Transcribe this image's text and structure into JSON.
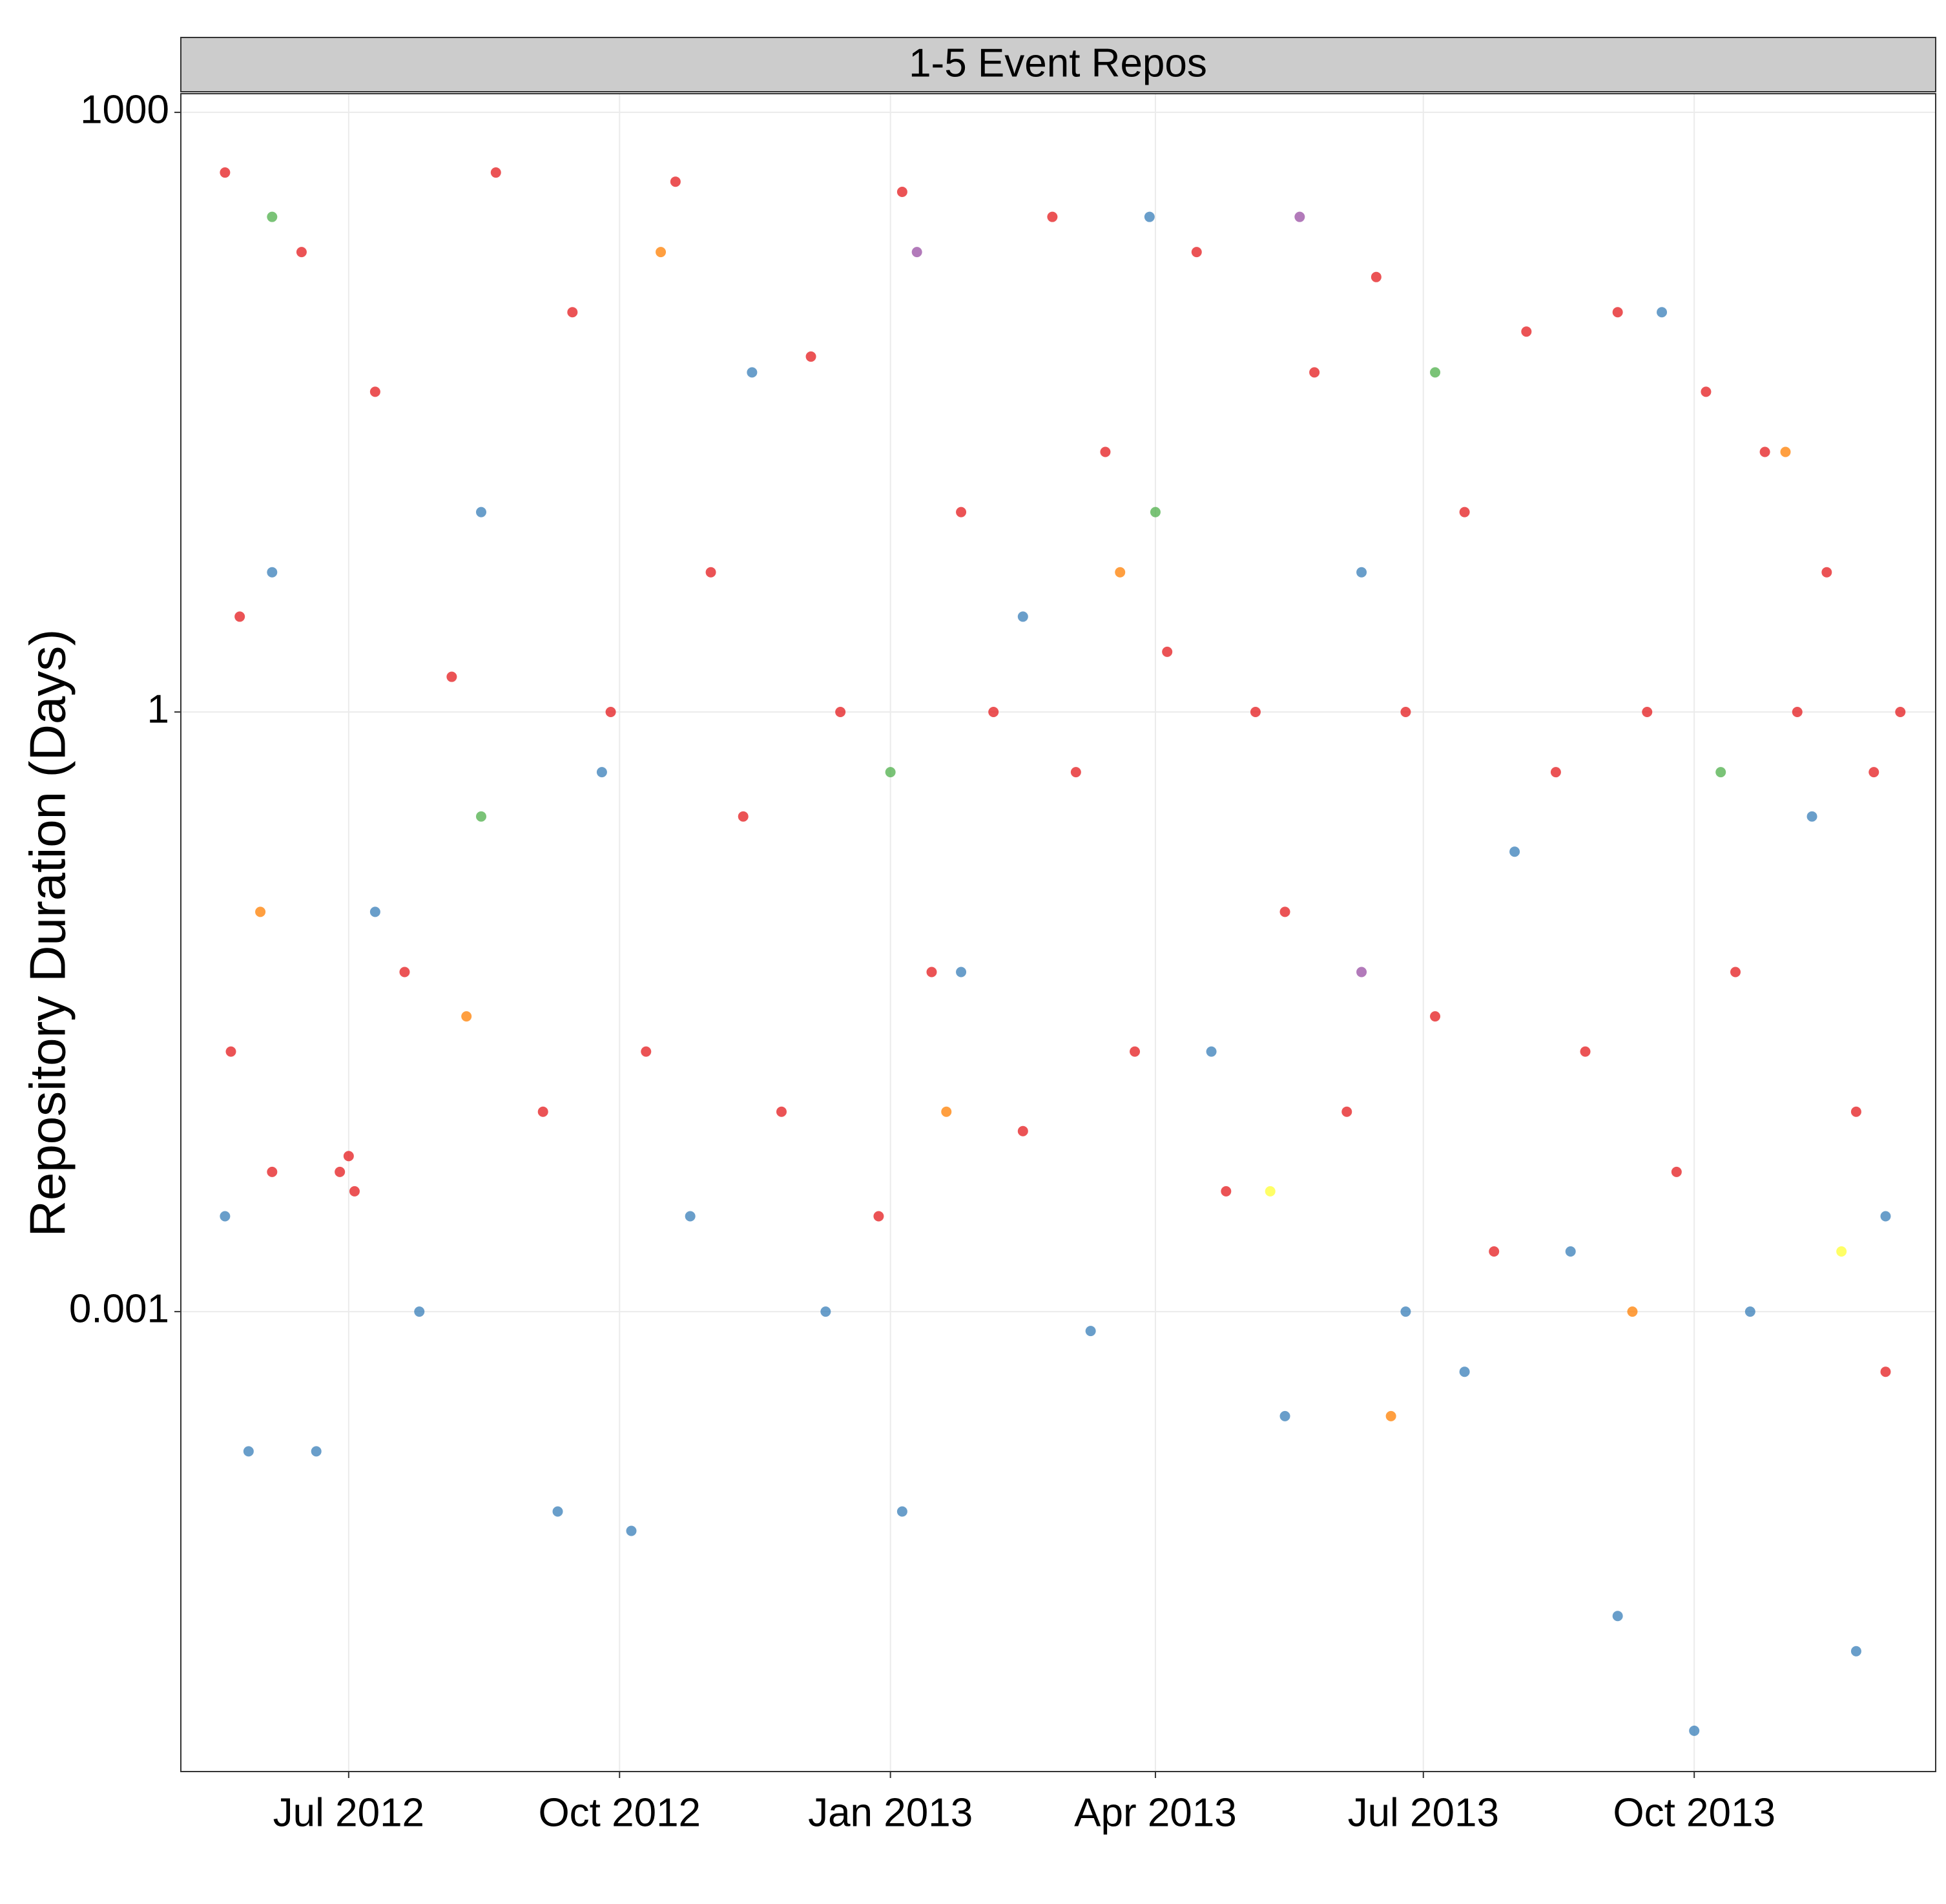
{
  "chart_data": {
    "type": "scatter",
    "strip_title": "1-5 Event Repos",
    "y_label": "Repository Duration (Days)",
    "log_y": true,
    "grid": true,
    "xlim": [
      "2012-05-05",
      "2013-12-22"
    ],
    "xticks": [
      {
        "value": "2012-07-01",
        "label": "Jul 2012"
      },
      {
        "value": "2012-10-01",
        "label": "Oct 2012"
      },
      {
        "value": "2013-01-01",
        "label": "Jan 2013"
      },
      {
        "value": "2013-04-01",
        "label": "Apr 2013"
      },
      {
        "value": "2013-07-01",
        "label": "Jul 2013"
      },
      {
        "value": "2013-10-01",
        "label": "Oct 2013"
      }
    ],
    "ylim": [
      5e-06,
      1240
    ],
    "yticks": [
      0.001,
      1,
      1000
    ],
    "series": [
      {
        "color": "#e41a1c",
        "x": [
          "2012-05-20",
          "2012-05-22",
          "2012-05-25",
          "2012-06-05",
          "2012-06-15",
          "2012-06-28",
          "2012-07-01",
          "2012-07-03",
          "2012-07-10",
          "2012-07-20",
          "2012-08-05",
          "2012-08-20",
          "2012-09-05",
          "2012-09-15",
          "2012-09-28",
          "2012-10-10",
          "2012-10-20",
          "2012-11-01",
          "2012-11-12",
          "2012-11-25",
          "2012-12-05",
          "2012-12-15",
          "2012-12-28",
          "2013-01-05",
          "2013-01-15",
          "2013-01-25",
          "2013-02-05",
          "2013-02-15",
          "2013-02-25",
          "2013-03-05",
          "2013-03-15",
          "2013-03-25",
          "2013-04-05",
          "2013-04-15",
          "2013-04-25",
          "2013-05-05",
          "2013-05-15",
          "2013-05-25",
          "2013-06-05",
          "2013-06-15",
          "2013-06-25",
          "2013-07-05",
          "2013-07-15",
          "2013-07-25",
          "2013-08-05",
          "2013-08-15",
          "2013-08-25",
          "2013-09-05",
          "2013-09-15",
          "2013-09-25",
          "2013-10-05",
          "2013-10-15",
          "2013-10-25",
          "2013-11-05",
          "2013-11-15",
          "2013-11-25",
          "2013-12-01",
          "2013-12-05",
          "2013-12-10"
        ],
        "values": [
          500,
          0.02,
          3,
          0.005,
          200,
          0.005,
          0.006,
          0.004,
          40,
          0.05,
          1.5,
          500,
          0.01,
          100,
          1,
          0.02,
          450,
          5,
          0.3,
          0.01,
          60,
          1,
          0.003,
          400,
          0.05,
          10,
          1,
          0.008,
          300,
          0.5,
          20,
          0.02,
          2,
          200,
          0.004,
          1,
          0.1,
          50,
          0.01,
          150,
          1,
          0.03,
          10,
          0.002,
          80,
          0.5,
          0.02,
          100,
          1,
          0.005,
          40,
          0.05,
          20,
          1,
          5,
          0.01,
          0.5,
          0.0005,
          1
        ]
      },
      {
        "color": "#377eb8",
        "x": [
          "2012-05-20",
          "2012-05-28",
          "2012-06-05",
          "2012-06-20",
          "2012-07-10",
          "2012-07-25",
          "2012-08-15",
          "2012-09-10",
          "2012-09-25",
          "2012-10-05",
          "2012-10-25",
          "2012-11-15",
          "2012-12-10",
          "2013-01-05",
          "2013-01-25",
          "2013-02-15",
          "2013-03-10",
          "2013-03-30",
          "2013-04-20",
          "2013-05-15",
          "2013-06-10",
          "2013-06-25",
          "2013-07-15",
          "2013-08-01",
          "2013-08-20",
          "2013-09-05",
          "2013-09-20",
          "2013-10-01",
          "2013-10-20",
          "2013-11-10",
          "2013-11-25",
          "2013-12-05"
        ],
        "values": [
          0.003,
          0.0002,
          5,
          0.0002,
          0.1,
          0.001,
          10,
          0.0001,
          0.5,
          8e-05,
          0.003,
          50,
          0.001,
          0.0001,
          0.05,
          3,
          0.0008,
          300,
          0.02,
          0.0003,
          5,
          0.001,
          0.0005,
          0.2,
          0.002,
          3e-05,
          100,
          8e-06,
          0.001,
          0.3,
          2e-05,
          0.003
        ]
      },
      {
        "color": "#ff7f00",
        "x": [
          "2012-06-01",
          "2012-08-10",
          "2012-10-15",
          "2013-01-20",
          "2013-03-20",
          "2013-06-20",
          "2013-09-10",
          "2013-11-01"
        ],
        "values": [
          0.1,
          0.03,
          200,
          0.01,
          5,
          0.0003,
          0.001,
          20
        ]
      },
      {
        "color": "#4daf4a",
        "x": [
          "2012-06-05",
          "2012-08-15",
          "2013-01-01",
          "2013-04-01",
          "2013-07-05",
          "2013-10-10"
        ],
        "values": [
          300,
          0.3,
          0.5,
          10,
          50,
          0.5
        ]
      },
      {
        "color": "#984ea3",
        "x": [
          "2013-01-10",
          "2013-05-20",
          "2013-06-10"
        ],
        "values": [
          200,
          300,
          0.05
        ]
      },
      {
        "color": "#ffff33",
        "x": [
          "2013-05-10",
          "2013-11-20"
        ],
        "values": [
          0.004,
          0.002
        ]
      }
    ]
  }
}
